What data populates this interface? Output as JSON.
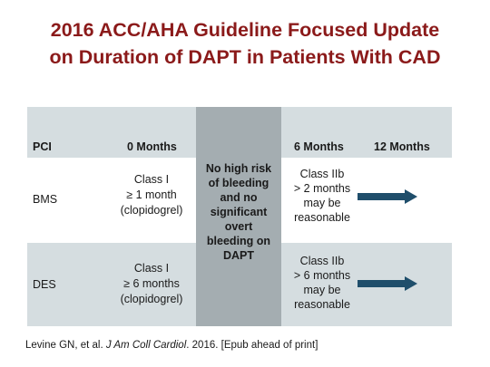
{
  "title": {
    "line1": "2016 ACC/AHA Guideline Focused Update",
    "line2": "on Duration of DAPT in Patients With CAD"
  },
  "table": {
    "headers": {
      "pci": "PCI",
      "zero_months": "0 Months",
      "six_months": "6 Months",
      "twelve_months": "12 Months"
    },
    "shaded_column": [
      "No high risk",
      "of bleeding",
      "and no",
      "significant",
      "overt",
      "bleeding on",
      "DAPT"
    ],
    "rows": [
      {
        "label": "BMS",
        "zero": [
          "Class I",
          "≥ 1 month",
          "(clopidogrel)"
        ],
        "six": [
          "Class IIb",
          "> 2 months",
          "may be",
          "reasonable"
        ]
      },
      {
        "label": "DES",
        "zero": [
          "Class I",
          "≥ 6 months",
          "(clopidogrel)"
        ],
        "six": [
          "Class IIb",
          "> 6 months",
          "may be",
          "reasonable"
        ]
      }
    ],
    "colors": {
      "arrow": "#1f4e6b",
      "band": "#d5dde0",
      "shaded": "#a4adb1",
      "title": "#8b1a1a"
    }
  },
  "citation": {
    "authors": "Levine GN, et al. ",
    "journal": "J Am Coll Cardiol",
    "rest": ". 2016. [Epub ahead of print]"
  }
}
